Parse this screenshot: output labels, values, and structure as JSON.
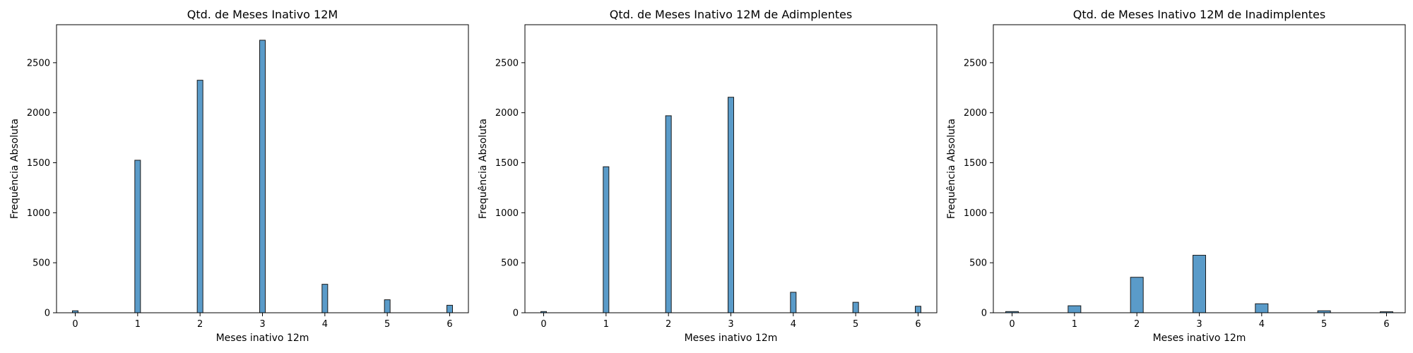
{
  "chart_data": [
    {
      "type": "bar",
      "title": "Qtd. de Meses Inativo 12M",
      "xlabel": "Meses inativo 12m",
      "ylabel": "Frequência Absoluta",
      "x": [
        0,
        1,
        2,
        3,
        4,
        5,
        6
      ],
      "values": [
        20,
        1525,
        2325,
        2725,
        285,
        130,
        75
      ],
      "xlim": [
        -0.3,
        6.3
      ],
      "ylim": [
        0,
        2880
      ],
      "xticks": [
        0,
        1,
        2,
        3,
        4,
        5,
        6
      ],
      "yticks": [
        0,
        500,
        1000,
        1500,
        2000,
        2500
      ],
      "color": "#5a9bc9",
      "grid": false
    },
    {
      "type": "bar",
      "title": "Qtd. de Meses Inativo 12M de Adimplentes",
      "xlabel": "Meses inativo 12m",
      "ylabel": "Frequência Absoluta",
      "x": [
        0,
        1,
        2,
        3,
        4,
        5,
        6
      ],
      "values": [
        12,
        1460,
        1970,
        2155,
        205,
        105,
        65
      ],
      "xlim": [
        -0.3,
        6.3
      ],
      "ylim": [
        0,
        2880
      ],
      "xticks": [
        0,
        1,
        2,
        3,
        4,
        5,
        6
      ],
      "yticks": [
        0,
        500,
        1000,
        1500,
        2000,
        2500
      ],
      "color": "#5a9bc9",
      "grid": false
    },
    {
      "type": "bar",
      "title": "Qtd. de Meses Inativo 12M de Inadimplentes",
      "xlabel": "Meses inativo 12m",
      "ylabel": "Frequência Absoluta",
      "x": [
        0,
        1,
        2,
        3,
        4,
        5,
        6
      ],
      "values": [
        12,
        70,
        355,
        575,
        90,
        20,
        10
      ],
      "xlim": [
        -0.3,
        6.3
      ],
      "ylim": [
        0,
        2880
      ],
      "xticks": [
        0,
        1,
        2,
        3,
        4,
        5,
        6
      ],
      "yticks": [
        0,
        500,
        1000,
        1500,
        2000,
        2500
      ],
      "color": "#5a9bc9",
      "grid": false
    }
  ]
}
